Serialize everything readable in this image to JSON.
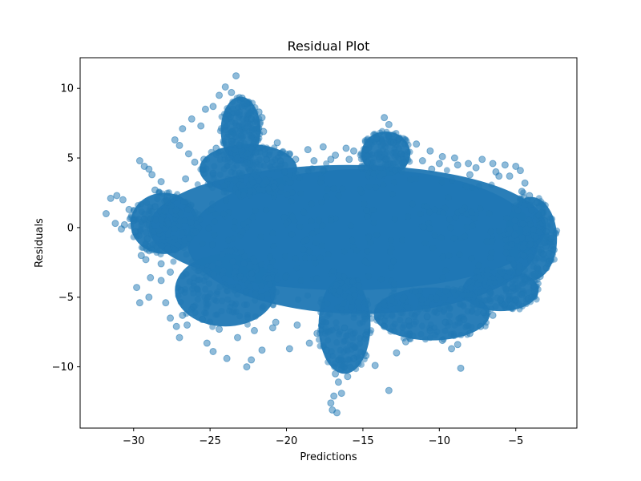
{
  "chart_data": {
    "type": "scatter",
    "title": "Residual Plot",
    "xlabel": "Predictions",
    "ylabel": "Residuals",
    "xlim": [
      -33.5,
      -1.0
    ],
    "ylim": [
      -14.4,
      12.2
    ],
    "xticks": [
      -30,
      -25,
      -20,
      -15,
      -10,
      -5
    ],
    "xtick_labels": [
      "−30",
      "−25",
      "−20",
      "−15",
      "−10",
      "−5"
    ],
    "yticks": [
      -10,
      -5,
      0,
      5,
      10
    ],
    "ytick_labels": [
      "−10",
      "−5",
      "0",
      "5",
      "10"
    ],
    "grid": false,
    "marker_color": "#1f77b4",
    "marker_alpha": 0.5,
    "series": [
      {
        "marker": "circle",
        "points": [
          [
            -31.8,
            1.0
          ],
          [
            -31.5,
            2.1
          ],
          [
            -31.1,
            2.3
          ],
          [
            -30.7,
            2.0
          ],
          [
            -30.3,
            1.3
          ],
          [
            -30.0,
            0.5
          ],
          [
            -30.6,
            0.2
          ],
          [
            -31.2,
            0.3
          ],
          [
            -30.8,
            -0.1
          ],
          [
            -29.9,
            -0.3
          ],
          [
            -29.6,
            4.8
          ],
          [
            -29.3,
            4.4
          ],
          [
            -29.0,
            4.2
          ],
          [
            -28.8,
            3.8
          ],
          [
            -29.5,
            -2.0
          ],
          [
            -29.2,
            -2.3
          ],
          [
            -29.8,
            -4.3
          ],
          [
            -29.6,
            -5.4
          ],
          [
            -29.0,
            -5.0
          ],
          [
            -28.9,
            -3.6
          ],
          [
            -28.2,
            -3.8
          ],
          [
            -27.9,
            -5.4
          ],
          [
            -27.6,
            -6.5
          ],
          [
            -27.2,
            -7.1
          ],
          [
            -27.0,
            -7.9
          ],
          [
            -26.8,
            -6.3
          ],
          [
            -26.5,
            -7.0
          ],
          [
            -25.2,
            -8.3
          ],
          [
            -24.8,
            -8.9
          ],
          [
            -23.9,
            -9.4
          ],
          [
            -22.6,
            -10.0
          ],
          [
            -22.3,
            -9.5
          ],
          [
            -21.6,
            -8.8
          ],
          [
            -20.9,
            -7.2
          ],
          [
            -19.8,
            -8.7
          ],
          [
            -18.5,
            -8.3
          ],
          [
            -17.4,
            -8.8
          ],
          [
            -16.8,
            -10.5
          ],
          [
            -16.6,
            -11.1
          ],
          [
            -16.9,
            -12.1
          ],
          [
            -17.1,
            -12.6
          ],
          [
            -17.0,
            -13.1
          ],
          [
            -16.7,
            -13.3
          ],
          [
            -16.4,
            -11.9
          ],
          [
            -16.0,
            -10.7
          ],
          [
            -15.6,
            -9.4
          ],
          [
            -14.8,
            -9.2
          ],
          [
            -14.2,
            -9.9
          ],
          [
            -13.3,
            -11.7
          ],
          [
            -12.8,
            -9.0
          ],
          [
            -12.2,
            -8.2
          ],
          [
            -10.6,
            -7.4
          ],
          [
            -9.8,
            -8.1
          ],
          [
            -9.2,
            -8.7
          ],
          [
            -8.8,
            -8.4
          ],
          [
            -8.6,
            -10.1
          ],
          [
            -8.0,
            -7.6
          ],
          [
            -7.3,
            -7.1
          ],
          [
            -6.5,
            -6.3
          ],
          [
            -5.7,
            -5.5
          ],
          [
            -5.0,
            -5.2
          ],
          [
            -4.6,
            -4.8
          ],
          [
            -4.2,
            -5.1
          ],
          [
            -3.8,
            -4.2
          ],
          [
            -3.4,
            -3.5
          ],
          [
            -3.0,
            -2.9
          ],
          [
            -2.8,
            -2.4
          ],
          [
            -2.5,
            -1.6
          ],
          [
            -2.7,
            -0.8
          ],
          [
            -3.1,
            0.5
          ],
          [
            -3.3,
            1.1
          ],
          [
            -3.6,
            1.8
          ],
          [
            -4.1,
            2.3
          ],
          [
            -4.4,
            3.2
          ],
          [
            -4.7,
            4.1
          ],
          [
            -5.0,
            4.4
          ],
          [
            -5.7,
            4.5
          ],
          [
            -6.5,
            4.6
          ],
          [
            -7.2,
            4.9
          ],
          [
            -8.1,
            4.6
          ],
          [
            -9.0,
            5.0
          ],
          [
            -9.8,
            5.1
          ],
          [
            -10.6,
            5.5
          ],
          [
            -11.5,
            6.0
          ],
          [
            -12.5,
            5.3
          ],
          [
            -13.0,
            6.1
          ],
          [
            -13.3,
            7.4
          ],
          [
            -13.6,
            7.9
          ],
          [
            -14.1,
            6.4
          ],
          [
            -14.8,
            5.6
          ],
          [
            -15.6,
            5.5
          ],
          [
            -16.1,
            5.7
          ],
          [
            -16.8,
            5.2
          ],
          [
            -17.6,
            5.8
          ],
          [
            -18.6,
            5.6
          ],
          [
            -19.8,
            5.3
          ],
          [
            -20.6,
            6.1
          ],
          [
            -21.5,
            6.9
          ],
          [
            -21.6,
            7.9
          ],
          [
            -21.8,
            8.3
          ],
          [
            -22.3,
            7.8
          ],
          [
            -22.6,
            8.9
          ],
          [
            -22.9,
            9.3
          ],
          [
            -23.3,
            10.9
          ],
          [
            -23.6,
            9.7
          ],
          [
            -24.0,
            10.1
          ],
          [
            -24.4,
            9.5
          ],
          [
            -24.8,
            8.7
          ],
          [
            -25.3,
            8.5
          ],
          [
            -25.6,
            7.3
          ],
          [
            -26.2,
            7.8
          ],
          [
            -26.8,
            7.1
          ],
          [
            -27.3,
            6.3
          ],
          [
            -27.0,
            5.9
          ],
          [
            -26.4,
            5.3
          ],
          [
            -26.0,
            4.7
          ],
          [
            -25.4,
            4.9
          ],
          [
            -24.6,
            5.7
          ],
          [
            -23.6,
            6.2
          ],
          [
            -23.1,
            5.9
          ],
          [
            -22.0,
            5.4
          ],
          [
            -21.3,
            4.9
          ],
          [
            -20.4,
            4.8
          ],
          [
            -19.4,
            4.9
          ],
          [
            -18.2,
            4.8
          ],
          [
            -17.1,
            4.9
          ],
          [
            -15.9,
            4.9
          ],
          [
            -14.7,
            4.7
          ],
          [
            -13.5,
            4.9
          ],
          [
            -12.3,
            4.7
          ],
          [
            -11.1,
            4.8
          ],
          [
            -10.0,
            4.6
          ],
          [
            -8.8,
            4.5
          ],
          [
            -7.6,
            4.3
          ],
          [
            -6.3,
            4.0
          ],
          [
            -5.4,
            3.7
          ],
          [
            -28.6,
            2.7
          ],
          [
            -28.2,
            3.3
          ],
          [
            -27.8,
            2.2
          ],
          [
            -28.6,
            1.5
          ],
          [
            -29.3,
            0.6
          ],
          [
            -29.1,
            -0.8
          ],
          [
            -28.8,
            -1.6
          ],
          [
            -28.2,
            -2.6
          ],
          [
            -27.6,
            -3.2
          ],
          [
            -26.9,
            -4.5
          ],
          [
            -26.1,
            -5.7
          ],
          [
            -25.5,
            -6.6
          ],
          [
            -24.4,
            -7.3
          ],
          [
            -23.2,
            -7.9
          ],
          [
            -22.1,
            -7.4
          ],
          [
            -20.7,
            -6.8
          ],
          [
            -19.3,
            -7.0
          ],
          [
            -18.0,
            -7.6
          ],
          [
            -16.2,
            -7.2
          ],
          [
            -14.8,
            -7.7
          ],
          [
            -13.6,
            -7.1
          ],
          [
            -12.0,
            -6.7
          ],
          [
            -10.8,
            -6.4
          ],
          [
            -9.6,
            -6.8
          ],
          [
            -8.4,
            -6.6
          ],
          [
            -7.1,
            -6.1
          ],
          [
            -6.0,
            -5.2
          ],
          [
            -5.2,
            -4.3
          ],
          [
            -4.4,
            -3.7
          ],
          [
            -3.6,
            -2.9
          ],
          [
            -3.2,
            -1.9
          ],
          [
            -3.0,
            -0.3
          ],
          [
            -3.5,
            0.9
          ],
          [
            -4.6,
            2.6
          ],
          [
            -6.1,
            3.7
          ],
          [
            -8.0,
            3.8
          ],
          [
            -10.5,
            4.2
          ],
          [
            -12.9,
            4.1
          ],
          [
            -15.1,
            4.3
          ],
          [
            -17.6,
            4.1
          ],
          [
            -20.1,
            4.0
          ],
          [
            -22.4,
            4.1
          ],
          [
            -24.8,
            3.9
          ],
          [
            -26.6,
            3.5
          ]
        ],
        "core_regions": [
          {
            "cx": -16.0,
            "cy": 0.0,
            "rx": 13.0,
            "ry": 4.5
          },
          {
            "cx": -15.0,
            "cy": -1.0,
            "rx": 11.5,
            "ry": 5.2
          },
          {
            "cx": -28.0,
            "cy": 0.3,
            "rx": 2.2,
            "ry": 2.2
          },
          {
            "cx": -4.0,
            "cy": -0.8,
            "rx": 1.7,
            "ry": 3.0
          },
          {
            "cx": -24.0,
            "cy": -4.5,
            "rx": 3.3,
            "ry": 2.6
          },
          {
            "cx": -22.5,
            "cy": 4.2,
            "rx": 3.2,
            "ry": 1.8
          },
          {
            "cx": -23.0,
            "cy": 7.0,
            "rx": 1.3,
            "ry": 2.4
          },
          {
            "cx": -13.5,
            "cy": 5.3,
            "rx": 1.6,
            "ry": 1.6
          },
          {
            "cx": -10.5,
            "cy": -6.2,
            "rx": 3.8,
            "ry": 1.9
          },
          {
            "cx": -16.2,
            "cy": -7.0,
            "rx": 1.7,
            "ry": 3.5
          },
          {
            "cx": -6.0,
            "cy": -4.5,
            "rx": 2.5,
            "ry": 1.5
          }
        ]
      }
    ]
  }
}
